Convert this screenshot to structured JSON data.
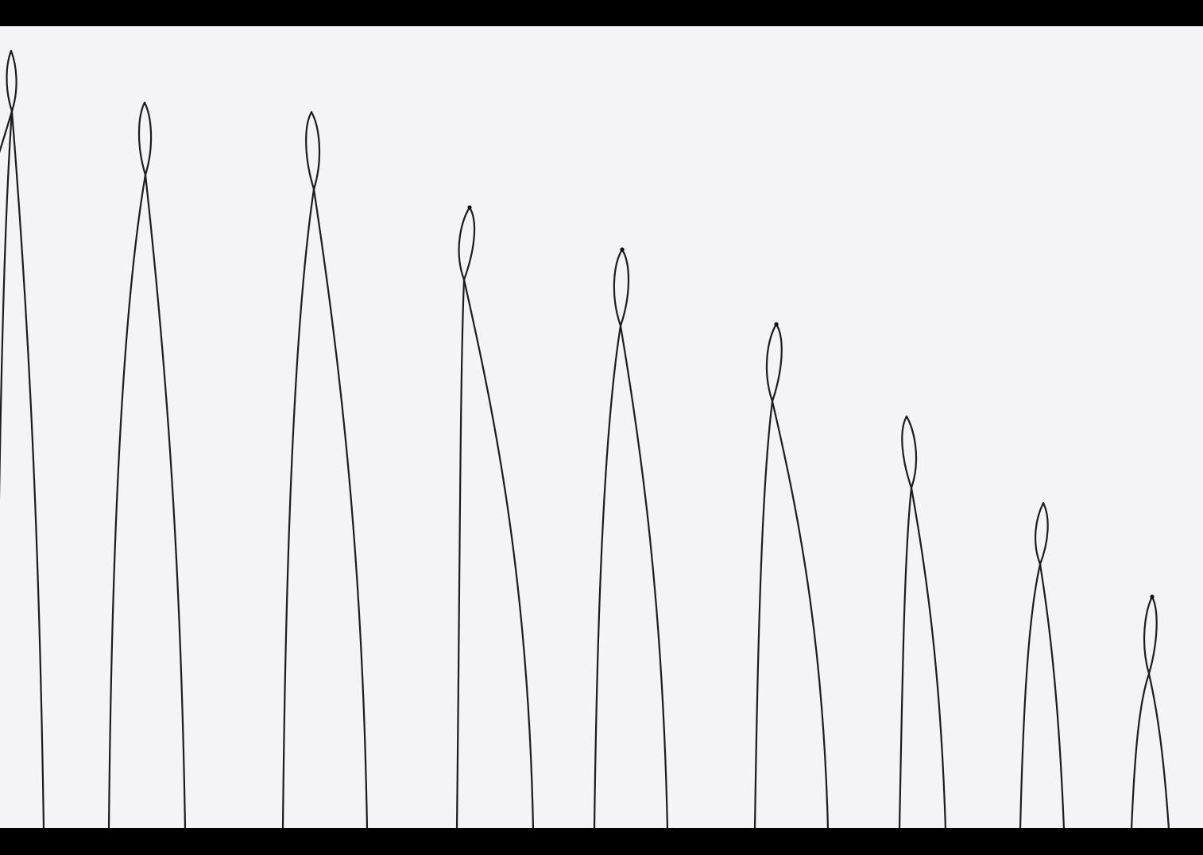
{
  "frame": {
    "letterbox_color": "#000000",
    "paper_color": "#f4f4f6",
    "ink_color": "#1c1c1c"
  },
  "drawing": {
    "subject": "hand-drawn-pencil-loops",
    "loop_count": 9
  }
}
